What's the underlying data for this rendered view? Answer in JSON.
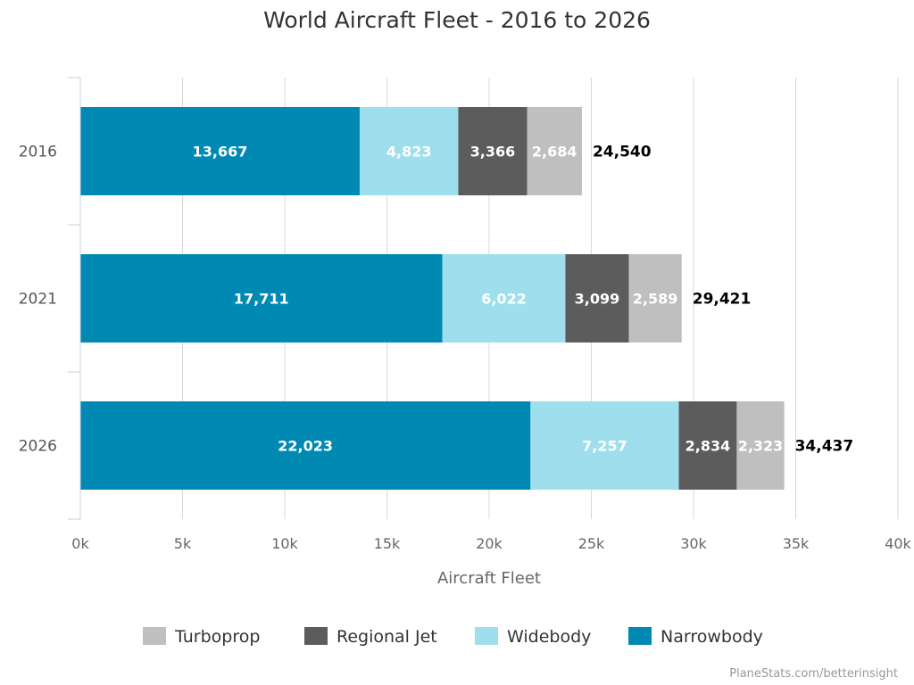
{
  "chart_data": {
    "type": "bar",
    "orientation": "horizontal",
    "stacked": true,
    "title": "World Aircraft Fleet - 2016 to 2026",
    "xlabel": "Aircraft Fleet",
    "ylabel": "",
    "xlim": [
      0,
      40000
    ],
    "x_ticks": [
      {
        "value": 0,
        "label": "0k"
      },
      {
        "value": 5000,
        "label": "5k"
      },
      {
        "value": 10000,
        "label": "10k"
      },
      {
        "value": 15000,
        "label": "15k"
      },
      {
        "value": 20000,
        "label": "20k"
      },
      {
        "value": 25000,
        "label": "25k"
      },
      {
        "value": 30000,
        "label": "30k"
      },
      {
        "value": 35000,
        "label": "35k"
      },
      {
        "value": 40000,
        "label": "40k"
      }
    ],
    "grid": true,
    "legend": "bottom",
    "categories": [
      "2016",
      "2021",
      "2026"
    ],
    "series": [
      {
        "name": "Narrowbody",
        "color": "#0089b3",
        "values": [
          13667,
          17711,
          22023
        ],
        "labels": [
          "13,667",
          "17,711",
          "22,023"
        ]
      },
      {
        "name": "Widebody",
        "color": "#9fdfed",
        "values": [
          4823,
          6022,
          7257
        ],
        "labels": [
          "4,823",
          "6,022",
          "7,257"
        ]
      },
      {
        "name": "Regional Jet",
        "color": "#5c5c5c",
        "values": [
          3366,
          3099,
          2834
        ],
        "labels": [
          "3,366",
          "3,099",
          "2,834"
        ]
      },
      {
        "name": "Turboprop",
        "color": "#bfbfbf",
        "values": [
          2684,
          2589,
          2323
        ],
        "labels": [
          "2,684",
          "2,589",
          "2,323"
        ]
      }
    ],
    "totals": [
      24540,
      29421,
      34437
    ],
    "total_labels": [
      "24,540",
      "29,421",
      "34,437"
    ],
    "legend_order": [
      "Turboprop",
      "Regional Jet",
      "Widebody",
      "Narrowbody"
    ]
  },
  "footer": {
    "credit": "PlaneStats.com/betterinsight"
  }
}
